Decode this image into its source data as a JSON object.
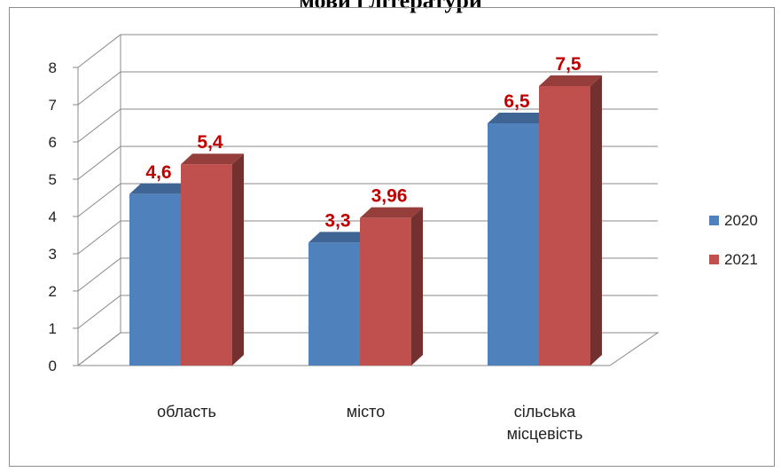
{
  "chart_data": {
    "type": "bar",
    "title": "мови і літератури",
    "categories": [
      "область",
      "місто",
      "сільська місцевість"
    ],
    "series": [
      {
        "name": "2020",
        "values": [
          4.6,
          3.3,
          6.5
        ],
        "color": "#4f81bd"
      },
      {
        "name": "2021",
        "values": [
          5.4,
          3.96,
          7.5
        ],
        "color": "#c0504d"
      }
    ],
    "value_labels": [
      [
        "4,6",
        "3,3",
        "6,5"
      ],
      [
        "5,4",
        "3,96",
        "7,5"
      ]
    ],
    "y_ticks": [
      "0",
      "1",
      "2",
      "3",
      "4",
      "5",
      "6",
      "7",
      "8"
    ],
    "ylim": [
      0,
      8
    ],
    "grid": true,
    "three_d": true,
    "legend_position": "right"
  }
}
